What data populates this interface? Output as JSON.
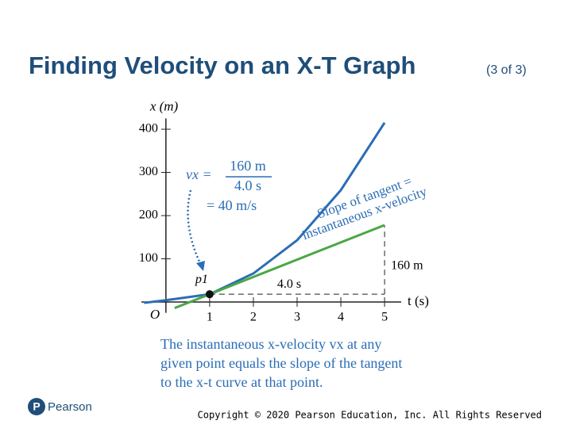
{
  "chart_data": {
    "type": "line",
    "title": "Finding Velocity on an X-T Graph",
    "subtitle": "(3 of 3)",
    "x_label": "t (s)",
    "y_label": "x (m)",
    "origin_label": "O",
    "point_label": "p1",
    "formula": {
      "lhs": "vx =",
      "numerator": "160 m",
      "denominator": "4.0 s",
      "result": "= 40 m/s"
    },
    "tangent_note": [
      "Slope of tangent =",
      "instantaneous x-velocity"
    ],
    "run_label": "4.0 s",
    "rise_label": "160 m",
    "caption": [
      "The instantaneous x-velocity vx at any",
      "given point equals the slope of the tangent",
      "to the x-t curve at that point."
    ],
    "logo": "Pearson",
    "copyright": "Copyright © 2020 Pearson Education, Inc. All Rights Reserved",
    "xlim": [
      -0.56,
      5.38
    ],
    "ylim": [
      -25,
      425
    ],
    "xticks": [
      1,
      2,
      3,
      4,
      5
    ],
    "yticks": [
      100,
      200,
      300,
      400
    ],
    "series": [
      {
        "name": "x-t curve",
        "color": "#2a6db5",
        "x": [
          -0.5,
          0,
          1,
          2,
          3,
          4,
          5
        ],
        "values": [
          -2,
          4,
          18,
          66,
          143,
          259,
          415
        ]
      },
      {
        "name": "tangent",
        "color": "#4aa844",
        "x": [
          0.2,
          5
        ],
        "values": [
          -14,
          178
        ]
      }
    ]
  }
}
